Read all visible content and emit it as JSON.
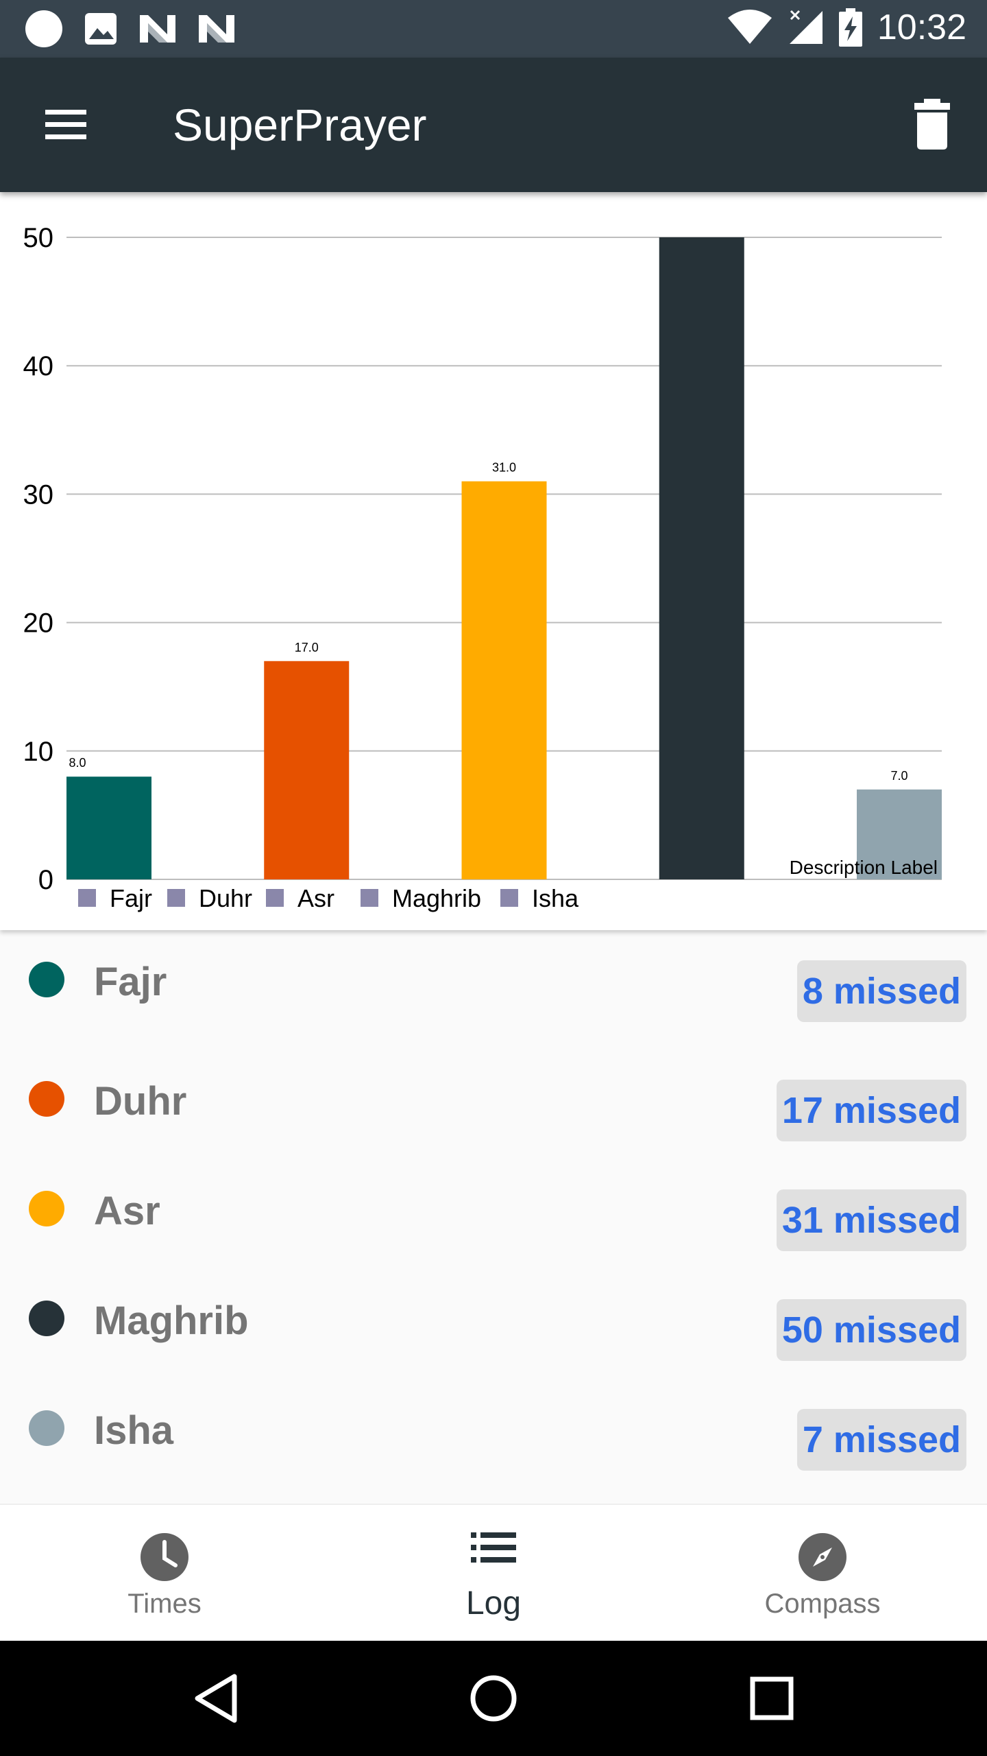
{
  "status_bar": {
    "time": "10:32",
    "left_icons": [
      "circle-icon",
      "image-icon",
      "n-icon",
      "n-icon"
    ],
    "right_icons": [
      "wifi-icon",
      "signal-icon",
      "battery-charging-icon"
    ]
  },
  "app_bar": {
    "title": "SuperPrayer",
    "menu_icon": "menu-icon",
    "delete_icon": "trash-icon"
  },
  "chart_data": {
    "type": "bar",
    "categories": [
      "Fajr",
      "Duhr",
      "Asr",
      "Maghrib",
      "Isha"
    ],
    "values": [
      8,
      17,
      31,
      50,
      7
    ],
    "value_labels": [
      "8.0",
      "17.0",
      "31.0",
      "",
      "7.0"
    ],
    "colors": [
      "#00645f",
      "#e65100",
      "#ffab00",
      "#263238",
      "#90a4ae"
    ],
    "legend_color": "#8a87aa",
    "ylim": [
      0,
      50
    ],
    "yticks": [
      "0",
      "10",
      "20",
      "30",
      "40",
      "50"
    ],
    "grid": true,
    "legend": [
      "Fajr",
      "Duhr",
      "Asr",
      "Maghrib",
      "Isha"
    ],
    "legend_position": "bottom-left",
    "description": "Description Label"
  },
  "prayers": [
    {
      "name": "Fajr",
      "missed": "8 missed",
      "color": "#00645f"
    },
    {
      "name": "Duhr",
      "missed": "17 missed",
      "color": "#e65100"
    },
    {
      "name": "Asr",
      "missed": "31 missed",
      "color": "#ffab00"
    },
    {
      "name": "Maghrib",
      "missed": "50 missed",
      "color": "#263238"
    },
    {
      "name": "Isha",
      "missed": "7 missed",
      "color": "#90a4ae"
    }
  ],
  "bottom_nav": {
    "items": [
      {
        "label": "Times",
        "icon": "clock-icon"
      },
      {
        "label": "Log",
        "icon": "list-icon"
      },
      {
        "label": "Compass",
        "icon": "compass-icon"
      }
    ],
    "active": "Log"
  },
  "system_nav": [
    "back-icon",
    "home-icon",
    "recents-icon"
  ]
}
